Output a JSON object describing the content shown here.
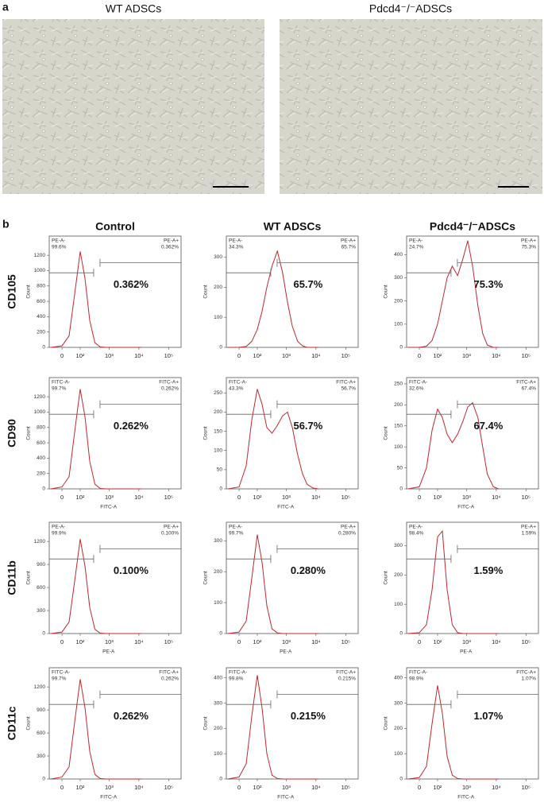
{
  "panel_a": {
    "label": "a",
    "images": [
      {
        "title": "WT ADSCs"
      },
      {
        "title": "Pdcd4⁻/⁻ADSCs"
      }
    ]
  },
  "panel_b": {
    "label": "b",
    "columns": [
      "Control",
      "WT ADSCs",
      "Pdcd4⁻/⁻ADSCs"
    ],
    "rows": [
      "CD105",
      "CD90",
      "CD11b",
      "CD11c"
    ]
  },
  "chart_data": [
    {
      "type": "line",
      "color": "#c0282d",
      "ylabel": "Count",
      "annotation": "0.362%",
      "gate_labels": {
        "left_name": "PE-A-",
        "left_value": "99.6%",
        "right_name": "PE-A+",
        "right_value": "0.362%"
      },
      "x": [
        -50,
        0,
        30,
        60,
        100,
        150,
        220,
        330,
        500,
        750,
        1100,
        1600,
        2400,
        3500,
        5000,
        8000,
        12000
      ],
      "values": [
        0,
        20,
        150,
        700,
        1250,
        900,
        350,
        60,
        5,
        0,
        0,
        0,
        0,
        0,
        0,
        0,
        0
      ],
      "xlim": [
        -60,
        262144
      ],
      "xticks": [
        0,
        {
          "value": 100,
          "label": "10²"
        },
        {
          "value": 1000,
          "label": "10³"
        },
        {
          "value": 10000,
          "label": "10⁴"
        },
        {
          "value": 100000,
          "label": "10⁵"
        }
      ],
      "ylim": [
        0,
        1450
      ],
      "yticks": [
        0,
        200,
        400,
        600,
        800,
        1000,
        1200
      ]
    },
    {
      "type": "line",
      "color": "#c0282d",
      "ylabel": "Count",
      "annotation": "65.7%",
      "gate_labels": {
        "left_name": "PE-A-",
        "left_value": "34.3%",
        "right_name": "PE-A+",
        "right_value": "65.7%"
      },
      "x": [
        -50,
        0,
        30,
        60,
        100,
        150,
        220,
        330,
        500,
        750,
        1100,
        1600,
        2400,
        3500,
        5000,
        8000,
        12000
      ],
      "values": [
        0,
        0,
        3,
        20,
        60,
        120,
        200,
        270,
        320,
        250,
        150,
        70,
        20,
        5,
        0,
        0,
        0
      ],
      "xlim": [
        -60,
        262144
      ],
      "xticks": [
        0,
        {
          "value": 100,
          "label": "10²"
        },
        {
          "value": 1000,
          "label": "10³"
        },
        {
          "value": 10000,
          "label": "10⁴"
        },
        {
          "value": 100000,
          "label": "10⁵"
        }
      ],
      "ylim": [
        0,
        370
      ],
      "yticks": [
        0,
        100,
        200,
        300
      ]
    },
    {
      "type": "line",
      "color": "#c0282d",
      "ylabel": "Count",
      "annotation": "75.3%",
      "gate_labels": {
        "left_name": "PE-A-",
        "left_value": "24.7%",
        "right_name": "PE-A+",
        "right_value": "75.3%"
      },
      "x": [
        -50,
        0,
        30,
        60,
        100,
        150,
        220,
        330,
        500,
        750,
        1100,
        1600,
        2400,
        3500,
        5000,
        8000,
        12000
      ],
      "values": [
        0,
        0,
        5,
        30,
        100,
        200,
        300,
        350,
        310,
        380,
        460,
        350,
        180,
        60,
        10,
        0,
        0
      ],
      "xlim": [
        -60,
        262144
      ],
      "xticks": [
        0,
        {
          "value": 100,
          "label": "10²"
        },
        {
          "value": 1000,
          "label": "10³"
        },
        {
          "value": 10000,
          "label": "10⁴"
        },
        {
          "value": 100000,
          "label": "10⁵"
        }
      ],
      "ylim": [
        0,
        480
      ],
      "yticks": [
        0,
        100,
        200,
        300,
        400
      ]
    },
    {
      "type": "line",
      "color": "#c0282d",
      "ylabel": "Count",
      "xlabel": "FITC-A",
      "annotation": "0.262%",
      "gate_labels": {
        "left_name": "FITC-A-",
        "left_value": "99.7%",
        "right_name": "FITC-A+",
        "right_value": "0.262%"
      },
      "x": [
        -50,
        0,
        30,
        60,
        100,
        150,
        220,
        330,
        500,
        750,
        1100,
        1600,
        2400,
        3500,
        5000,
        8000,
        12000
      ],
      "values": [
        0,
        25,
        160,
        750,
        1300,
        940,
        360,
        60,
        5,
        0,
        0,
        0,
        0,
        0,
        0,
        0,
        0
      ],
      "xlim": [
        -60,
        262144
      ],
      "xticks": [
        0,
        {
          "value": 100,
          "label": "10²"
        },
        {
          "value": 1000,
          "label": "10³"
        },
        {
          "value": 10000,
          "label": "10⁴"
        },
        {
          "value": 100000,
          "label": "10⁵"
        }
      ],
      "ylim": [
        0,
        1450
      ],
      "yticks": [
        0,
        200,
        400,
        600,
        800,
        1000,
        1200
      ]
    },
    {
      "type": "line",
      "color": "#c0282d",
      "ylabel": "Count",
      "xlabel": "FITC-A",
      "annotation": "56.7%",
      "gate_labels": {
        "left_name": "FITC-A-",
        "left_value": "43.3%",
        "right_name": "FITC-A+",
        "right_value": "56.7%"
      },
      "x": [
        -50,
        0,
        30,
        60,
        100,
        150,
        220,
        330,
        500,
        750,
        1100,
        1600,
        2400,
        3500,
        5000,
        8000,
        12000
      ],
      "values": [
        0,
        5,
        60,
        180,
        260,
        220,
        160,
        145,
        165,
        190,
        200,
        160,
        90,
        40,
        12,
        2,
        0
      ],
      "xlim": [
        -60,
        262144
      ],
      "xticks": [
        0,
        {
          "value": 100,
          "label": "10²"
        },
        {
          "value": 1000,
          "label": "10³"
        },
        {
          "value": 10000,
          "label": "10⁴"
        },
        {
          "value": 100000,
          "label": "10⁵"
        }
      ],
      "ylim": [
        0,
        290
      ],
      "yticks": [
        0,
        50,
        100,
        150,
        200,
        250
      ]
    },
    {
      "type": "line",
      "color": "#c0282d",
      "ylabel": "Count",
      "xlabel": "FITC-A",
      "annotation": "67.4%",
      "gate_labels": {
        "left_name": "FITC-A-",
        "left_value": "32.6%",
        "right_name": "FITC-A+",
        "right_value": "67.4%"
      },
      "x": [
        -50,
        0,
        30,
        60,
        100,
        150,
        220,
        330,
        500,
        750,
        1100,
        1600,
        2400,
        3500,
        5000,
        8000,
        12000
      ],
      "values": [
        0,
        5,
        50,
        140,
        190,
        170,
        130,
        110,
        130,
        160,
        195,
        205,
        170,
        100,
        35,
        5,
        0
      ],
      "xlim": [
        -60,
        262144
      ],
      "xticks": [
        0,
        {
          "value": 100,
          "label": "10²"
        },
        {
          "value": 1000,
          "label": "10³"
        },
        {
          "value": 10000,
          "label": "10⁴"
        },
        {
          "value": 100000,
          "label": "10⁵"
        }
      ],
      "ylim": [
        0,
        265
      ],
      "yticks": [
        0,
        50,
        100,
        150,
        200,
        250
      ]
    },
    {
      "type": "line",
      "color": "#c0282d",
      "ylabel": "Count",
      "xlabel": "PE-A",
      "annotation": "0.100%",
      "gate_labels": {
        "left_name": "PE-A-",
        "left_value": "99.9%",
        "right_name": "PE-A+",
        "right_value": "0.100%"
      },
      "x": [
        -50,
        0,
        30,
        60,
        100,
        150,
        220,
        330,
        500,
        750,
        1100,
        1600,
        2400,
        3500,
        5000,
        8000,
        12000
      ],
      "values": [
        0,
        20,
        150,
        690,
        1230,
        880,
        340,
        55,
        5,
        0,
        0,
        0,
        0,
        0,
        0,
        0,
        0
      ],
      "xlim": [
        -60,
        262144
      ],
      "xticks": [
        0,
        {
          "value": 100,
          "label": "10²"
        },
        {
          "value": 1000,
          "label": "10³"
        },
        {
          "value": 10000,
          "label": "10⁴"
        },
        {
          "value": 100000,
          "label": "10⁵"
        }
      ],
      "ylim": [
        0,
        1450
      ],
      "yticks": [
        0,
        300,
        600,
        900,
        1200
      ]
    },
    {
      "type": "line",
      "color": "#c0282d",
      "ylabel": "Count",
      "xlabel": "PE-A",
      "annotation": "0.280%",
      "gate_labels": {
        "left_name": "PE-A-",
        "left_value": "99.7%",
        "right_name": "PE-A+",
        "right_value": "0.280%"
      },
      "x": [
        -50,
        0,
        30,
        60,
        100,
        150,
        220,
        330,
        500,
        750,
        1100,
        1600,
        2400,
        3500,
        5000,
        8000,
        12000
      ],
      "values": [
        0,
        5,
        40,
        180,
        320,
        230,
        90,
        15,
        2,
        0,
        0,
        0,
        0,
        0,
        0,
        0,
        0
      ],
      "xlim": [
        -60,
        262144
      ],
      "xticks": [
        0,
        {
          "value": 100,
          "label": "10²"
        },
        {
          "value": 1000,
          "label": "10³"
        },
        {
          "value": 10000,
          "label": "10⁴"
        },
        {
          "value": 100000,
          "label": "10⁵"
        }
      ],
      "ylim": [
        0,
        360
      ],
      "yticks": [
        0,
        100,
        200,
        300
      ]
    },
    {
      "type": "line",
      "color": "#c0282d",
      "ylabel": "Count",
      "xlabel": "PE-A",
      "annotation": "1.59%",
      "gate_labels": {
        "left_name": "PE-A-",
        "left_value": "98.4%",
        "right_name": "PE-A+",
        "right_value": "1.59%"
      },
      "x": [
        -50,
        0,
        30,
        60,
        100,
        150,
        220,
        330,
        500,
        750,
        1100,
        1600,
        2400,
        3500,
        5000,
        8000,
        12000
      ],
      "values": [
        0,
        3,
        30,
        150,
        330,
        350,
        150,
        30,
        3,
        0,
        0,
        0,
        0,
        0,
        0,
        0,
        0
      ],
      "xlim": [
        -60,
        262144
      ],
      "xticks": [
        0,
        {
          "value": 100,
          "label": "10²"
        },
        {
          "value": 1000,
          "label": "10³"
        },
        {
          "value": 10000,
          "label": "10⁴"
        },
        {
          "value": 100000,
          "label": "10⁵"
        }
      ],
      "ylim": [
        0,
        380
      ],
      "yticks": [
        0,
        100,
        200,
        300
      ]
    },
    {
      "type": "line",
      "color": "#c0282d",
      "ylabel": "Count",
      "xlabel": "FITC-A",
      "annotation": "0.262%",
      "gate_labels": {
        "left_name": "FITC-A-",
        "left_value": "99.7%",
        "right_name": "FITC-A+",
        "right_value": "0.262%"
      },
      "x": [
        -50,
        0,
        30,
        60,
        100,
        150,
        220,
        330,
        500,
        750,
        1100,
        1600,
        2400,
        3500,
        5000,
        8000,
        12000
      ],
      "values": [
        0,
        25,
        160,
        750,
        1300,
        930,
        360,
        60,
        5,
        0,
        0,
        0,
        0,
        0,
        0,
        0,
        0
      ],
      "xlim": [
        -60,
        262144
      ],
      "xticks": [
        0,
        {
          "value": 100,
          "label": "10²"
        },
        {
          "value": 1000,
          "label": "10³"
        },
        {
          "value": 10000,
          "label": "10⁴"
        },
        {
          "value": 100000,
          "label": "10⁵"
        }
      ],
      "ylim": [
        0,
        1450
      ],
      "yticks": [
        0,
        300,
        600,
        900,
        1200
      ]
    },
    {
      "type": "line",
      "color": "#c0282d",
      "ylabel": "Count",
      "xlabel": "FITC-A",
      "annotation": "0.215%",
      "gate_labels": {
        "left_name": "FITC-A-",
        "left_value": "99.8%",
        "right_name": "FITC-A+",
        "right_value": "0.215%"
      },
      "x": [
        -50,
        0,
        30,
        60,
        100,
        150,
        220,
        330,
        500,
        750,
        1100,
        1600,
        2400,
        3500,
        5000,
        8000,
        12000
      ],
      "values": [
        0,
        8,
        60,
        250,
        410,
        280,
        100,
        15,
        2,
        0,
        0,
        0,
        0,
        0,
        0,
        0,
        0
      ],
      "xlim": [
        -60,
        262144
      ],
      "xticks": [
        0,
        {
          "value": 100,
          "label": "10²"
        },
        {
          "value": 1000,
          "label": "10³"
        },
        {
          "value": 10000,
          "label": "10⁴"
        },
        {
          "value": 100000,
          "label": "10⁵"
        }
      ],
      "ylim": [
        0,
        440
      ],
      "yticks": [
        0,
        100,
        200,
        300,
        400
      ]
    },
    {
      "type": "line",
      "color": "#c0282d",
      "ylabel": "Count",
      "xlabel": "FITC-A",
      "annotation": "1.07%",
      "gate_labels": {
        "left_name": "FITC-A-",
        "left_value": "98.9%",
        "right_name": "FITC-A+",
        "right_value": "1.07%"
      },
      "x": [
        -50,
        0,
        30,
        60,
        100,
        150,
        220,
        330,
        500,
        750,
        1100,
        1600,
        2400,
        3500,
        5000,
        8000,
        12000
      ],
      "values": [
        0,
        6,
        50,
        220,
        370,
        260,
        90,
        15,
        2,
        0,
        0,
        0,
        0,
        0,
        0,
        0,
        0
      ],
      "xlim": [
        -60,
        262144
      ],
      "xticks": [
        0,
        {
          "value": 100,
          "label": "10²"
        },
        {
          "value": 1000,
          "label": "10³"
        },
        {
          "value": 10000,
          "label": "10⁴"
        },
        {
          "value": 100000,
          "label": "10⁵"
        }
      ],
      "ylim": [
        0,
        440
      ],
      "yticks": [
        0,
        100,
        200,
        300,
        400
      ]
    }
  ]
}
